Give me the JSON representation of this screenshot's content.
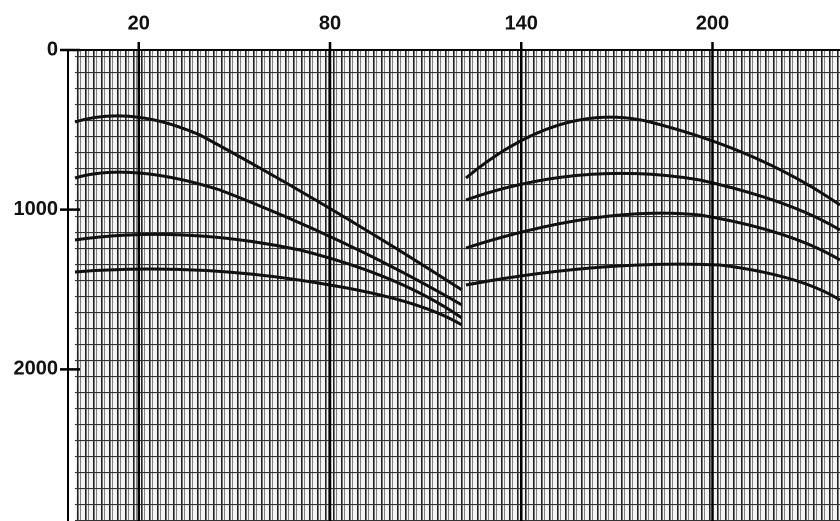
{
  "chart_data": {
    "type": "seismic",
    "xlim": [
      0,
      240
    ],
    "xticks": [
      20,
      80,
      140,
      200
    ],
    "ylim": [
      0,
      2950
    ],
    "yticks": [
      0,
      1000,
      2000
    ]
  }
}
